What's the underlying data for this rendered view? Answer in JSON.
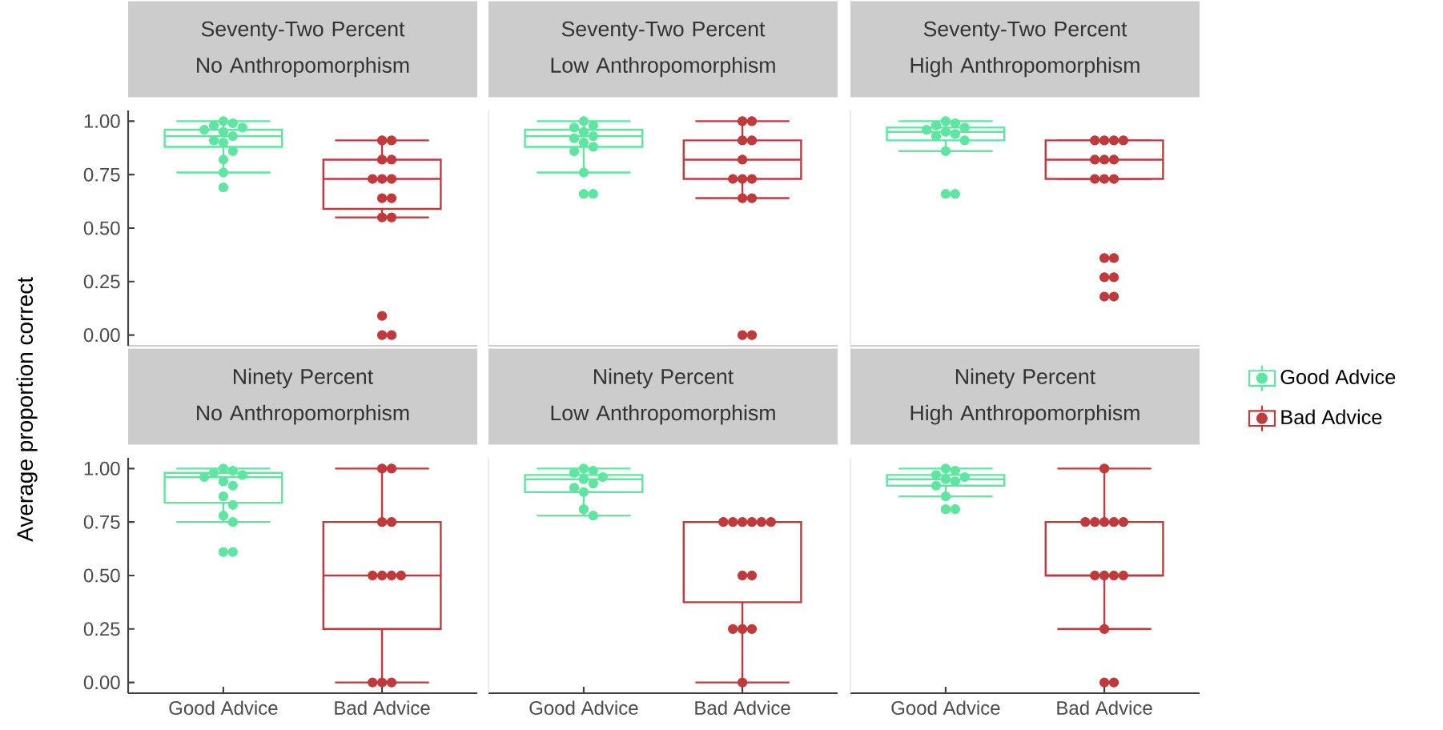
{
  "chart_data": [
    {
      "type": "box",
      "title": "Seventy-Two Percent",
      "subtitle": "No Anthropomorphism",
      "ylabel": "Average proportion correct",
      "categories": [
        "Good Advice",
        "Bad Advice"
      ],
      "ylim": [
        -0.05,
        1.05
      ],
      "yticks": [
        {
          "value": 0,
          "label": "0.00"
        },
        {
          "value": 0.25,
          "label": "0.25"
        },
        {
          "value": 0.5,
          "label": "0.50"
        },
        {
          "value": 0.75,
          "label": "0.75"
        },
        {
          "value": 1,
          "label": "1.00"
        }
      ],
      "tick_labels": "y",
      "marker": "circle",
      "series": [
        {
          "color": "#5ee6a0",
          "boxes": [
            {
              "low": 0.76,
              "q1": 0.88,
              "median": 0.93,
              "q3": 0.96,
              "high": 1.0
            },
            null
          ]
        },
        {
          "color": "#c0393b",
          "boxes": [
            null,
            {
              "low": 0.55,
              "q1": 0.59,
              "median": 0.73,
              "q3": 0.82,
              "high": 0.91
            }
          ]
        },
        {
          "type": "scatter",
          "color": "#5ee6a0",
          "x": [
            "Good Advice",
            "Good Advice",
            "Good Advice",
            "Good Advice",
            "Good Advice",
            "Good Advice",
            "Good Advice",
            "Good Advice",
            "Good Advice",
            "Good Advice",
            "Good Advice",
            "Good Advice",
            "Good Advice"
          ],
          "values": [
            1.0,
            0.99,
            0.98,
            0.97,
            0.96,
            0.95,
            0.93,
            0.91,
            0.9,
            0.86,
            0.82,
            0.76,
            0.69
          ]
        },
        {
          "type": "scatter",
          "color": "#c0393b",
          "x": [
            "Bad Advice",
            "Bad Advice",
            "Bad Advice",
            "Bad Advice",
            "Bad Advice",
            "Bad Advice",
            "Bad Advice",
            "Bad Advice",
            "Bad Advice",
            "Bad Advice",
            "Bad Advice",
            "Bad Advice",
            "Bad Advice",
            "Bad Advice"
          ],
          "values": [
            0.91,
            0.91,
            0.82,
            0.82,
            0.73,
            0.73,
            0.73,
            0.64,
            0.64,
            0.55,
            0.55,
            0.09,
            0,
            0
          ]
        }
      ]
    },
    {
      "type": "box",
      "title": "Seventy-Two Percent",
      "subtitle": "Low Anthropomorphism",
      "categories": [
        "Good Advice",
        "Bad Advice"
      ],
      "ylim": [
        -0.05,
        1.05
      ],
      "tick_labels": false,
      "marker": "circle",
      "series": [
        {
          "color": "#5ee6a0",
          "boxes": [
            {
              "low": 0.76,
              "q1": 0.88,
              "median": 0.93,
              "q3": 0.96,
              "high": 1.0
            },
            null
          ]
        },
        {
          "color": "#c0393b",
          "boxes": [
            null,
            {
              "low": 0.64,
              "q1": 0.73,
              "median": 0.82,
              "q3": 0.91,
              "high": 1.0
            }
          ]
        },
        {
          "type": "scatter",
          "color": "#5ee6a0",
          "x": [
            "Good Advice",
            "Good Advice",
            "Good Advice",
            "Good Advice",
            "Good Advice",
            "Good Advice",
            "Good Advice",
            "Good Advice",
            "Good Advice",
            "Good Advice",
            "Good Advice",
            "Good Advice"
          ],
          "values": [
            1.0,
            0.98,
            0.97,
            0.95,
            0.93,
            0.92,
            0.9,
            0.88,
            0.86,
            0.76,
            0.66,
            0.66
          ]
        },
        {
          "type": "scatter",
          "color": "#c0393b",
          "x": [
            "Bad Advice",
            "Bad Advice",
            "Bad Advice",
            "Bad Advice",
            "Bad Advice",
            "Bad Advice",
            "Bad Advice",
            "Bad Advice",
            "Bad Advice",
            "Bad Advice",
            "Bad Advice",
            "Bad Advice"
          ],
          "values": [
            1.0,
            1.0,
            0.91,
            0.91,
            0.82,
            0.73,
            0.73,
            0.73,
            0.64,
            0.64,
            0,
            0
          ]
        }
      ]
    },
    {
      "type": "box",
      "title": "Seventy-Two Percent",
      "subtitle": "High Anthropomorphism",
      "categories": [
        "Good Advice",
        "Bad Advice"
      ],
      "ylim": [
        -0.05,
        1.05
      ],
      "tick_labels": false,
      "marker": "circle",
      "legend": "right",
      "series": [
        {
          "name": "Good Advice",
          "color": "#5ee6a0",
          "boxes": [
            {
              "low": 0.86,
              "q1": 0.91,
              "median": 0.95,
              "q3": 0.97,
              "high": 1.0
            },
            null
          ]
        },
        {
          "name": "Bad Advice",
          "color": "#c0393b",
          "boxes": [
            null,
            {
              "low": 0.73,
              "q1": 0.73,
              "median": 0.82,
              "q3": 0.91,
              "high": 0.91
            }
          ]
        },
        {
          "type": "scatter",
          "color": "#5ee6a0",
          "x": [
            "Good Advice",
            "Good Advice",
            "Good Advice",
            "Good Advice",
            "Good Advice",
            "Good Advice",
            "Good Advice",
            "Good Advice",
            "Good Advice",
            "Good Advice",
            "Good Advice",
            "Good Advice"
          ],
          "values": [
            1.0,
            0.99,
            0.98,
            0.97,
            0.96,
            0.95,
            0.94,
            0.93,
            0.91,
            0.86,
            0.66,
            0.66
          ]
        },
        {
          "type": "scatter",
          "color": "#c0393b",
          "x": [
            "Bad Advice",
            "Bad Advice",
            "Bad Advice",
            "Bad Advice",
            "Bad Advice",
            "Bad Advice",
            "Bad Advice",
            "Bad Advice",
            "Bad Advice",
            "Bad Advice",
            "Bad Advice",
            "Bad Advice",
            "Bad Advice",
            "Bad Advice",
            "Bad Advice",
            "Bad Advice"
          ],
          "values": [
            0.91,
            0.91,
            0.91,
            0.91,
            0.82,
            0.82,
            0.82,
            0.73,
            0.73,
            0.73,
            0.36,
            0.36,
            0.27,
            0.27,
            0.18,
            0.18
          ]
        }
      ]
    },
    {
      "type": "box",
      "title": "Ninety Percent",
      "subtitle": "No Anthropomorphism",
      "categories": [
        "Good Advice",
        "Bad Advice"
      ],
      "ylim": [
        -0.05,
        1.05
      ],
      "yticks": [
        {
          "value": 0,
          "label": "0.00"
        },
        {
          "value": 0.25,
          "label": "0.25"
        },
        {
          "value": 0.5,
          "label": "0.50"
        },
        {
          "value": 0.75,
          "label": "0.75"
        },
        {
          "value": 1,
          "label": "1.00"
        }
      ],
      "marker": "circle",
      "series": [
        {
          "color": "#5ee6a0",
          "boxes": [
            {
              "low": 0.75,
              "q1": 0.84,
              "median": 0.96,
              "q3": 0.98,
              "high": 1.0
            },
            null
          ]
        },
        {
          "color": "#c0393b",
          "boxes": [
            null,
            {
              "low": 0,
              "q1": 0.25,
              "median": 0.5,
              "q3": 0.75,
              "high": 1.0
            }
          ]
        },
        {
          "type": "scatter",
          "color": "#5ee6a0",
          "x": [
            "Good Advice",
            "Good Advice",
            "Good Advice",
            "Good Advice",
            "Good Advice",
            "Good Advice",
            "Good Advice",
            "Good Advice",
            "Good Advice",
            "Good Advice",
            "Good Advice",
            "Good Advice",
            "Good Advice"
          ],
          "values": [
            1.0,
            0.99,
            0.98,
            0.97,
            0.96,
            0.94,
            0.92,
            0.87,
            0.83,
            0.78,
            0.75,
            0.61,
            0.61
          ]
        },
        {
          "type": "scatter",
          "color": "#c0393b",
          "x": [
            "Bad Advice",
            "Bad Advice",
            "Bad Advice",
            "Bad Advice",
            "Bad Advice",
            "Bad Advice",
            "Bad Advice",
            "Bad Advice",
            "Bad Advice",
            "Bad Advice",
            "Bad Advice"
          ],
          "values": [
            1.0,
            1.0,
            0.75,
            0.75,
            0.5,
            0.5,
            0.5,
            0.5,
            0,
            0,
            0
          ]
        }
      ]
    },
    {
      "type": "box",
      "title": "Ninety Percent",
      "subtitle": "Low Anthropomorphism",
      "categories": [
        "Good Advice",
        "Bad Advice"
      ],
      "ylim": [
        -0.05,
        1.05
      ],
      "tick_labels": "x",
      "marker": "circle",
      "series": [
        {
          "color": "#5ee6a0",
          "boxes": [
            {
              "low": 0.78,
              "q1": 0.89,
              "median": 0.95,
              "q3": 0.97,
              "high": 1.0
            },
            null
          ]
        },
        {
          "color": "#c0393b",
          "boxes": [
            null,
            {
              "low": 0,
              "q1": 0.375,
              "median": 0.75,
              "q3": 0.75,
              "high": 0.75
            }
          ]
        },
        {
          "type": "scatter",
          "color": "#5ee6a0",
          "x": [
            "Good Advice",
            "Good Advice",
            "Good Advice",
            "Good Advice",
            "Good Advice",
            "Good Advice",
            "Good Advice",
            "Good Advice",
            "Good Advice",
            "Good Advice"
          ],
          "values": [
            1.0,
            0.99,
            0.98,
            0.96,
            0.95,
            0.93,
            0.91,
            0.89,
            0.81,
            0.78
          ]
        },
        {
          "type": "scatter",
          "color": "#c0393b",
          "x": [
            "Bad Advice",
            "Bad Advice",
            "Bad Advice",
            "Bad Advice",
            "Bad Advice",
            "Bad Advice",
            "Bad Advice",
            "Bad Advice",
            "Bad Advice",
            "Bad Advice",
            "Bad Advice",
            "Bad Advice"
          ],
          "values": [
            0.75,
            0.75,
            0.75,
            0.75,
            0.75,
            0.75,
            0.5,
            0.5,
            0.25,
            0.25,
            0.25,
            0
          ]
        }
      ]
    },
    {
      "type": "box",
      "title": "Ninety Percent",
      "subtitle": "High Anthropomorphism",
      "categories": [
        "Good Advice",
        "Bad Advice"
      ],
      "ylim": [
        -0.05,
        1.05
      ],
      "tick_labels": "x",
      "marker": "circle",
      "series": [
        {
          "color": "#5ee6a0",
          "boxes": [
            {
              "low": 0.87,
              "q1": 0.92,
              "median": 0.95,
              "q3": 0.97,
              "high": 1.0
            },
            null
          ]
        },
        {
          "color": "#c0393b",
          "boxes": [
            null,
            {
              "low": 0.25,
              "q1": 0.5,
              "median": 0.5,
              "q3": 0.75,
              "high": 1.0
            }
          ]
        },
        {
          "type": "scatter",
          "color": "#5ee6a0",
          "x": [
            "Good Advice",
            "Good Advice",
            "Good Advice",
            "Good Advice",
            "Good Advice",
            "Good Advice",
            "Good Advice",
            "Good Advice",
            "Good Advice",
            "Good Advice"
          ],
          "values": [
            1.0,
            0.99,
            0.97,
            0.96,
            0.95,
            0.94,
            0.92,
            0.87,
            0.81,
            0.81
          ]
        },
        {
          "type": "scatter",
          "color": "#c0393b",
          "x": [
            "Bad Advice",
            "Bad Advice",
            "Bad Advice",
            "Bad Advice",
            "Bad Advice",
            "Bad Advice",
            "Bad Advice",
            "Bad Advice",
            "Bad Advice",
            "Bad Advice",
            "Bad Advice",
            "Bad Advice",
            "Bad Advice"
          ],
          "values": [
            1.0,
            0.75,
            0.75,
            0.75,
            0.75,
            0.75,
            0.5,
            0.5,
            0.5,
            0.5,
            0.25,
            0,
            0
          ]
        }
      ]
    }
  ]
}
